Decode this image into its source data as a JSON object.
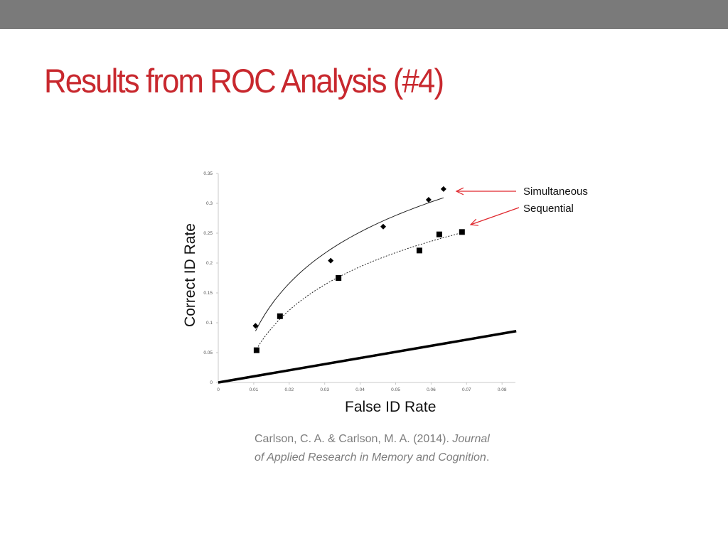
{
  "slide": {
    "title": "Results from ROC Analysis (#4)",
    "colors": {
      "topbar": "#7a7a7a",
      "title": "#c8282e",
      "arrow": "#e0282e",
      "citation": "#7d7d7d"
    }
  },
  "citation": {
    "authors": "Carlson, C. A. & Carlson, M. A. (2014). ",
    "journal_part1": "Journal",
    "journal_part2": "of Applied Research in Memory and Cognition",
    "end": "."
  },
  "chart_data": {
    "type": "scatter",
    "title": "",
    "xlabel": "False ID Rate",
    "ylabel": "Correct ID Rate",
    "xlim": [
      0,
      0.084
    ],
    "ylim": [
      0,
      0.35
    ],
    "x_ticks": [
      "0",
      "0.01",
      "0.02",
      "0.03",
      "0.04",
      "0.05",
      "0.06",
      "0.07",
      "0.08"
    ],
    "y_ticks": [
      "0",
      "0.05",
      "0.1",
      "0.15",
      "0.2",
      "0.25",
      "0.3",
      "0.35"
    ],
    "grid": false,
    "legend_position": "annotations right with red arrows",
    "series": [
      {
        "name": "Simultaneous",
        "marker": "diamond",
        "trendline": "solid logarithmic",
        "x": [
          0.0105,
          0.0317,
          0.0465,
          0.0593,
          0.0635
        ],
        "y": [
          0.095,
          0.204,
          0.261,
          0.306,
          0.324
        ]
      },
      {
        "name": "Sequential",
        "marker": "square",
        "trendline": "dotted logarithmic",
        "x": [
          0.0108,
          0.0174,
          0.0339,
          0.0567,
          0.0623,
          0.0687
        ],
        "y": [
          0.054,
          0.111,
          0.175,
          0.221,
          0.248,
          0.252
        ]
      },
      {
        "name": "Chance line",
        "marker": "none",
        "line": "thick solid",
        "x": [
          0,
          0.084
        ],
        "y": [
          0,
          0.086
        ]
      }
    ],
    "annotations": [
      {
        "text": "Simultaneous",
        "arrow_to": "top of Simultaneous curve"
      },
      {
        "text": "Sequential",
        "arrow_to": "top of Sequential curve"
      }
    ]
  }
}
